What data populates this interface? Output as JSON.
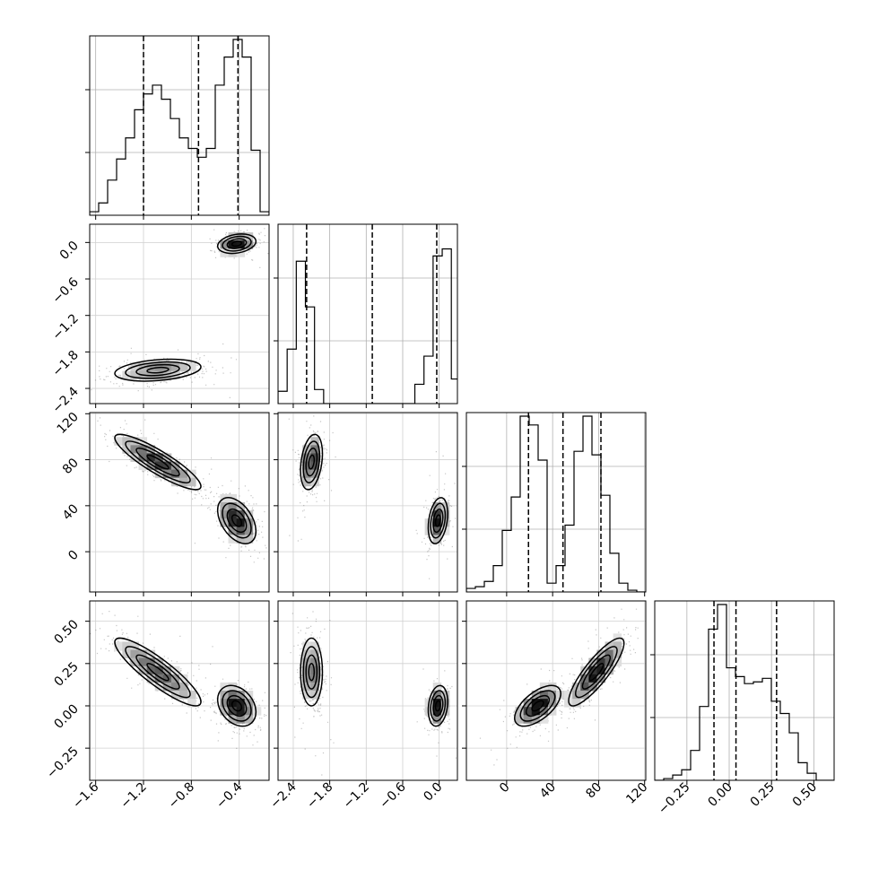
{
  "chart_data": {
    "type": "corner",
    "grid": true,
    "parameters": [
      {
        "range": [
          -1.65,
          -0.15
        ],
        "ticks": [
          -1.6,
          -1.2,
          -0.8,
          -0.4
        ],
        "tick_labels": [
          "−1.6",
          "−1.2",
          "−0.8",
          "−0.4"
        ],
        "quantiles": [
          -1.2,
          -0.74,
          -0.41
        ]
      },
      {
        "range": [
          -2.65,
          0.3
        ],
        "ticks": [
          -2.4,
          -1.8,
          -1.2,
          -0.6,
          0.0
        ],
        "tick_labels": [
          "−2.4",
          "−1.8",
          "−1.2",
          "−0.6",
          "0.0"
        ],
        "quantiles": [
          -2.18,
          -1.1,
          -0.04
        ]
      },
      {
        "range": [
          -35,
          121
        ],
        "ticks": [
          0,
          40,
          80,
          120
        ],
        "tick_labels": [
          "0",
          "40",
          "80",
          "120"
        ],
        "quantiles": [
          19,
          49,
          82
        ]
      },
      {
        "range": [
          -0.44,
          0.62
        ],
        "ticks": [
          -0.25,
          0.0,
          0.25,
          0.5
        ],
        "tick_labels": [
          "−0.25",
          "0.00",
          "0.25",
          "0.50"
        ],
        "quantiles": [
          -0.09,
          0.04,
          0.28
        ]
      }
    ],
    "histograms": [
      {
        "param": 0,
        "bin_start": -1.65,
        "bin_width": 0.075,
        "counts": [
          0.02,
          0.07,
          0.2,
          0.32,
          0.44,
          0.6,
          0.69,
          0.74,
          0.66,
          0.55,
          0.44,
          0.38,
          0.33,
          0.38,
          0.74,
          0.9,
          1.0,
          0.9,
          0.37,
          0.02
        ]
      },
      {
        "param": 1,
        "bin_start": -2.65,
        "bin_width": 0.15,
        "counts": [
          0.07,
          0.31,
          0.81,
          0.55,
          0.08,
          0,
          0,
          0,
          0,
          0,
          0,
          0,
          0,
          0,
          0,
          0.11,
          0.27,
          0.84,
          0.88,
          0.14
        ]
      },
      {
        "param": 2,
        "bin_start": -35,
        "bin_width": 7.8,
        "counts": [
          0.02,
          0.03,
          0.06,
          0.15,
          0.35,
          0.54,
          1.0,
          0.95,
          0.75,
          0.05,
          0.15,
          0.38,
          0.8,
          1.0,
          0.78,
          0.55,
          0.22,
          0.05,
          0.01,
          0
        ]
      },
      {
        "param": 3,
        "bin_start": -0.44,
        "bin_width": 0.053,
        "counts": [
          0.0,
          0.01,
          0.03,
          0.06,
          0.17,
          0.42,
          0.86,
          1.0,
          0.64,
          0.59,
          0.55,
          0.56,
          0.58,
          0.45,
          0.38,
          0.27,
          0.1,
          0.04,
          0.0,
          0.0
        ]
      }
    ],
    "hist_scale": 0.98,
    "histogram_y_ticks": [
      0.35,
      0.7
    ],
    "mode_clusters": [
      {
        "weight": 0.55,
        "mean": [
          -1.08,
          -2.1,
          78,
          0.2
        ],
        "sd": [
          0.18,
          0.09,
          12,
          0.1
        ]
      },
      {
        "weight": 0.45,
        "mean": [
          -0.42,
          -0.02,
          27,
          0.0
        ],
        "sd": [
          0.08,
          0.08,
          10,
          0.06
        ]
      }
    ]
  }
}
